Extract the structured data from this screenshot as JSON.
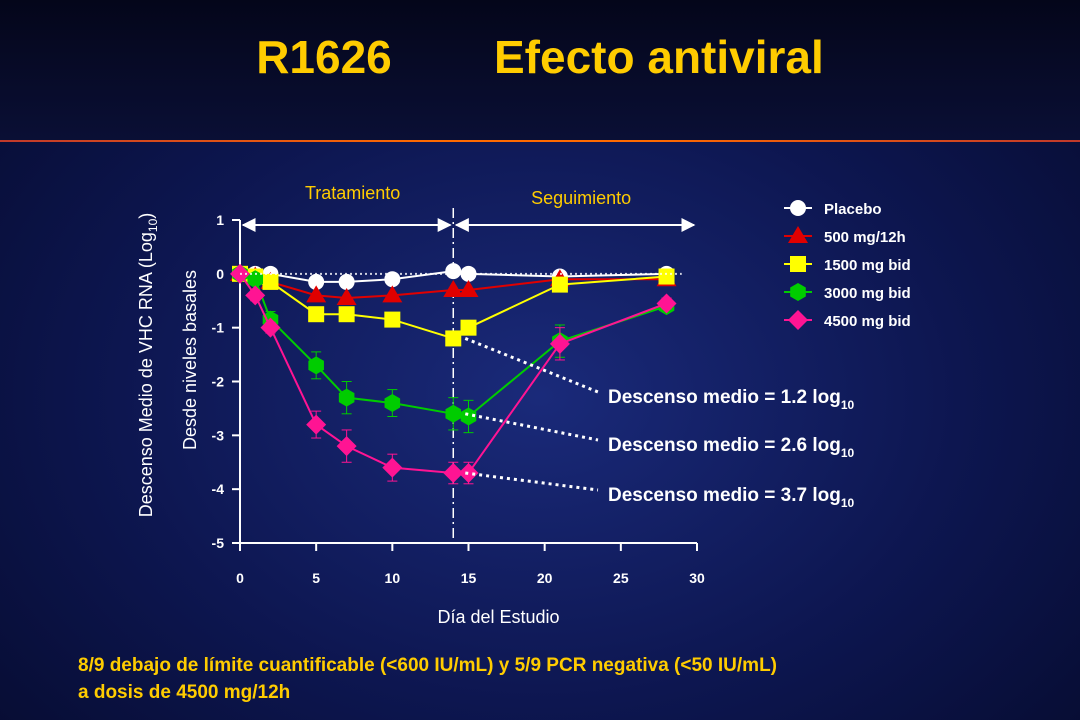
{
  "title": "R1626        Efecto antiviral",
  "footnote": {
    "line1": "8/9 debajo de límite cuantificable (<600 IU/mL) y 5/9 PCR negativa (<50 IU/mL)",
    "line2": "a dosis de 4500 mg/12h"
  },
  "colors": {
    "title": "#ffcc00",
    "divider": "#ff6a00",
    "text": "#ffffff"
  },
  "chart_data": {
    "type": "line",
    "xlabel": "Día del Estudio",
    "ylabel": "Descenso Medio de VHC RNA (Log10)",
    "ylabel2": "Desde niveles basales",
    "xlim": [
      0,
      30
    ],
    "ylim": [
      -5,
      1
    ],
    "xticks": [
      0,
      5,
      10,
      15,
      20,
      25,
      30
    ],
    "yticks": [
      1,
      0,
      -1,
      -2,
      -3,
      -4,
      -5
    ],
    "legend_position": "top-right",
    "phases": [
      {
        "label": "Tratamiento",
        "from": 0,
        "to": 14
      },
      {
        "label": "Seguimiento",
        "from": 14,
        "to": 30
      }
    ],
    "treatment_end_day": 14,
    "series": [
      {
        "name": "Placebo",
        "color": "#ffffff",
        "marker": "circle",
        "x": [
          0,
          1,
          2,
          5,
          7,
          10,
          14,
          15,
          21,
          28
        ],
        "y": [
          0,
          0,
          0,
          -0.15,
          -0.15,
          -0.1,
          0.05,
          0,
          -0.05,
          0
        ]
      },
      {
        "name": "500 mg/12h",
        "color": "#e00000",
        "marker": "triangle",
        "x": [
          0,
          1,
          2,
          5,
          7,
          10,
          14,
          15,
          21,
          28
        ],
        "y": [
          0,
          -0.05,
          -0.15,
          -0.4,
          -0.45,
          -0.4,
          -0.3,
          -0.3,
          -0.1,
          -0.1
        ]
      },
      {
        "name": "1500 mg bid",
        "color": "#ffff00",
        "marker": "square",
        "x": [
          0,
          1,
          2,
          5,
          7,
          10,
          14,
          15,
          21,
          28
        ],
        "y": [
          0,
          -0.05,
          -0.15,
          -0.75,
          -0.75,
          -0.85,
          -1.2,
          -1.0,
          -0.2,
          -0.05
        ]
      },
      {
        "name": "3000 mg bid",
        "color": "#00cc00",
        "marker": "hexagon",
        "x": [
          0,
          1,
          2,
          5,
          7,
          10,
          14,
          15,
          21,
          28
        ],
        "y": [
          0,
          -0.1,
          -0.85,
          -1.7,
          -2.3,
          -2.4,
          -2.6,
          -2.65,
          -1.25,
          -0.6
        ],
        "err": [
          0,
          0.1,
          0.15,
          0.25,
          0.3,
          0.25,
          0.3,
          0.3,
          0.3,
          0.1
        ]
      },
      {
        "name": "4500 mg bid",
        "color": "#ff1493",
        "marker": "diamond",
        "x": [
          0,
          1,
          2,
          5,
          7,
          10,
          14,
          15,
          21,
          28
        ],
        "y": [
          0,
          -0.4,
          -1.0,
          -2.8,
          -3.2,
          -3.6,
          -3.7,
          -3.7,
          -1.3,
          -0.55
        ],
        "err": [
          0,
          0.1,
          0.1,
          0.25,
          0.3,
          0.25,
          0.2,
          0.2,
          0.3,
          0.1
        ]
      }
    ],
    "annotations": [
      {
        "text": "Descenso medio = 1.2 log",
        "sub": "10",
        "x": 14,
        "y": -1.2
      },
      {
        "text": "Descenso medio = 2.6 log",
        "sub": "10",
        "x": 14,
        "y": -2.6
      },
      {
        "text": "Descenso medio = 3.7 log",
        "sub": "10",
        "x": 14,
        "y": -3.7
      }
    ]
  }
}
